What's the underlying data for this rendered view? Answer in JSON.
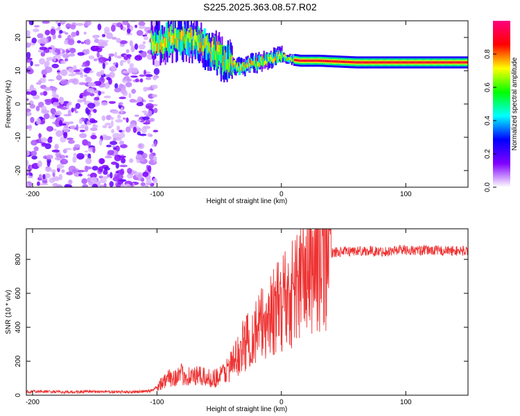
{
  "title": "S225.2025.363.08.57.R02",
  "chart_data": [
    {
      "type": "heatmap",
      "xlabel": "Height of straight line (km)",
      "ylabel": "Frequency (Hz)",
      "xlim": [
        -205,
        150
      ],
      "ylim": [
        -25,
        25
      ],
      "x_ticks": [
        -200,
        -100,
        0,
        100
      ],
      "y_ticks": [
        20,
        10,
        0,
        -10,
        -20
      ],
      "colorbar": {
        "label": "Normalized spectral amplitude",
        "range": [
          0,
          1
        ],
        "ticks": [
          "0.0",
          "0.2",
          "0.4",
          "0.6",
          "0.8"
        ],
        "colors": [
          "#ffffff",
          "#8000ff",
          "#0000ff",
          "#00ffff",
          "#00ff00",
          "#ffff00",
          "#ff0000",
          "#ff0080"
        ]
      },
      "noise_region": {
        "x_range": [
          -205,
          -100
        ],
        "y_range": [
          -25,
          25
        ]
      },
      "ridge": {
        "x": [
          -105,
          -95,
          -85,
          -75,
          -65,
          -55,
          -45,
          -35,
          -25,
          -15,
          -5,
          0,
          5,
          15,
          30,
          60,
          100,
          150
        ],
        "frequency": [
          18,
          19,
          20,
          19.5,
          18,
          16,
          13,
          11,
          12,
          13,
          14,
          14.5,
          13.5,
          13,
          13,
          12.5,
          12.5,
          12.5
        ]
      }
    },
    {
      "type": "line",
      "xlabel": "Height of straight line (km)",
      "ylabel": "SNR (10 * v/v)",
      "xlim": [
        -205,
        150
      ],
      "ylim": [
        0,
        980
      ],
      "x_ticks": [
        -200,
        -100,
        0,
        100
      ],
      "y_ticks": [
        0,
        200,
        400,
        600,
        800
      ],
      "series": [
        {
          "color": "#ee3333",
          "x": [
            -205,
            -190,
            -175,
            -160,
            -145,
            -130,
            -115,
            -105,
            -100,
            -95,
            -90,
            -85,
            -80,
            -75,
            -70,
            -65,
            -60,
            -55,
            -50,
            -45,
            -40,
            -35,
            -30,
            -25,
            -20,
            -15,
            -10,
            -5,
            0,
            2,
            5,
            10,
            15,
            20,
            25,
            30,
            35,
            40,
            50,
            60,
            70,
            80,
            90,
            95,
            100,
            110,
            120,
            130,
            140,
            150
          ],
          "y": [
            20,
            22,
            18,
            20,
            21,
            19,
            20,
            25,
            50,
            80,
            100,
            110,
            120,
            115,
            110,
            110,
            100,
            100,
            110,
            140,
            180,
            230,
            300,
            340,
            380,
            420,
            470,
            500,
            520,
            600,
            560,
            620,
            680,
            720,
            760,
            800,
            820,
            840,
            845,
            850,
            850,
            845,
            850,
            860,
            855,
            850,
            855,
            850,
            850,
            850
          ]
        }
      ]
    }
  ]
}
